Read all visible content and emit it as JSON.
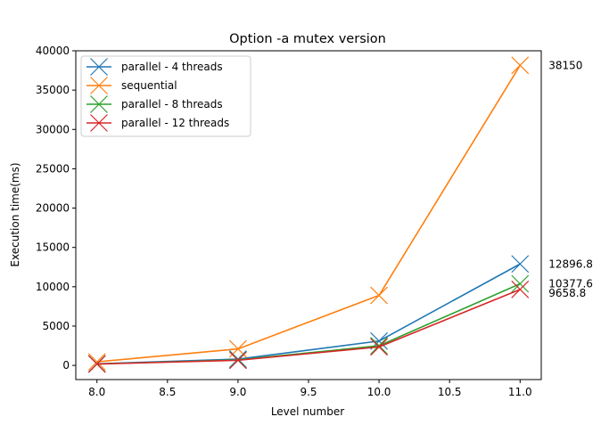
{
  "chart_data": {
    "type": "line",
    "title": "Option -a mutex version",
    "xlabel": "Level number",
    "ylabel": "Execution time(ms)",
    "xlim": [
      7.85,
      11.15
    ],
    "ylim": [
      -1800,
      40000
    ],
    "xticks": [
      8.0,
      8.5,
      9.0,
      9.5,
      10.0,
      10.5,
      11.0
    ],
    "xtick_labels": [
      "8.0",
      "8.5",
      "9.0",
      "9.5",
      "10.0",
      "10.5",
      "11.0"
    ],
    "yticks": [
      0,
      5000,
      10000,
      15000,
      20000,
      25000,
      30000,
      35000,
      40000
    ],
    "ytick_labels": [
      "0",
      "5000",
      "10000",
      "15000",
      "20000",
      "25000",
      "30000",
      "35000",
      "40000"
    ],
    "grid": false,
    "legend_position": "top-left",
    "marker": "x",
    "x": [
      8,
      9,
      10,
      11
    ],
    "series": [
      {
        "name": "parallel - 4 threads",
        "color": "#1f77b4",
        "values": [
          200,
          800,
          3100,
          12896.8
        ]
      },
      {
        "name": "sequential",
        "color": "#ff7f0e",
        "values": [
          450,
          2100,
          8900,
          38150
        ]
      },
      {
        "name": "parallel - 8 threads",
        "color": "#2ca02c",
        "values": [
          180,
          700,
          2500,
          10377.6
        ]
      },
      {
        "name": "parallel - 12 threads",
        "color": "#d62728",
        "values": [
          170,
          650,
          2350,
          9658.8
        ]
      }
    ],
    "annotations": [
      {
        "text": "38150",
        "x": 11,
        "y": 38150
      },
      {
        "text": "12896.8",
        "x": 11,
        "y": 12896.8
      },
      {
        "text": "10377.6",
        "x": 11,
        "y": 10377.6
      },
      {
        "text": "9658.8",
        "x": 11,
        "y": 9658.8
      }
    ]
  }
}
